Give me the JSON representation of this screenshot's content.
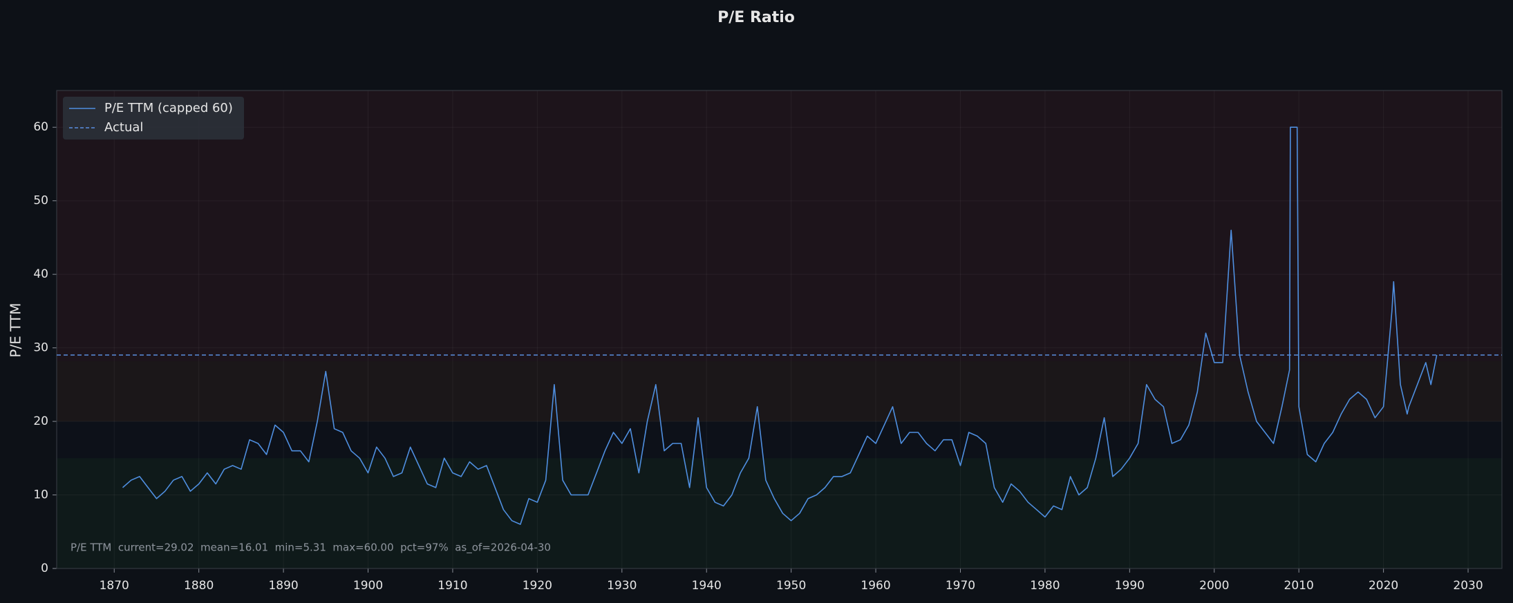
{
  "chart_data": {
    "type": "line",
    "title": "P/E Ratio",
    "ylabel": "P/E TTM",
    "annotation": "P/E TTM  current=29.02  mean=16.01  min=5.31  max=60.00  pct=97%  as_of=2026-04-30",
    "xlim": [
      1863.2,
      2034
    ],
    "ylim": [
      0,
      65
    ],
    "xticks": [
      1870,
      1880,
      1890,
      1900,
      1910,
      1920,
      1930,
      1940,
      1950,
      1960,
      1970,
      1980,
      1990,
      2000,
      2010,
      2020,
      2030
    ],
    "yticks": [
      0,
      10,
      20,
      30,
      40,
      50,
      60
    ],
    "grid": true,
    "legend": "upper left",
    "bands": [
      {
        "from": 28.2,
        "to": 65,
        "color": "#1d141b"
      },
      {
        "from": 20,
        "to": 28.2,
        "color": "#1b1719"
      },
      {
        "from": 0,
        "to": 15,
        "color": "#0f1a1a"
      }
    ],
    "reference": {
      "name": "Actual",
      "value": 29.02,
      "color": "#5b8ee0"
    },
    "x": [
      1871,
      1872,
      1873,
      1874,
      1875,
      1876,
      1877,
      1878,
      1879,
      1880,
      1881,
      1882,
      1883,
      1884,
      1885,
      1886,
      1887,
      1888,
      1889,
      1890,
      1891,
      1892,
      1893,
      1894,
      1895,
      1896,
      1897,
      1898,
      1899,
      1900,
      1901,
      1902,
      1903,
      1904,
      1905,
      1906,
      1907,
      1908,
      1909,
      1910,
      1911,
      1912,
      1913,
      1914,
      1915,
      1916,
      1917,
      1918,
      1919,
      1920,
      1921,
      1922,
      1923,
      1924,
      1925,
      1926,
      1927,
      1928,
      1929,
      1930,
      1931,
      1932,
      1933,
      1934,
      1935,
      1936,
      1937,
      1938,
      1939,
      1940,
      1941,
      1942,
      1943,
      1944,
      1945,
      1946,
      1947,
      1948,
      1949,
      1950,
      1951,
      1952,
      1953,
      1954,
      1955,
      1956,
      1957,
      1958,
      1959,
      1960,
      1961,
      1962,
      1963,
      1964,
      1965,
      1966,
      1967,
      1968,
      1969,
      1970,
      1971,
      1972,
      1973,
      1974,
      1975,
      1976,
      1977,
      1978,
      1979,
      1980,
      1981,
      1982,
      1983,
      1984,
      1985,
      1986,
      1987,
      1988,
      1989,
      1990,
      1991,
      1992,
      1993,
      1994,
      1995,
      1996,
      1997,
      1998,
      1999,
      2000,
      2001,
      2002,
      2003,
      2004,
      2005,
      2006,
      2007,
      2008,
      2008.9,
      2009,
      2009.8,
      2010,
      2011,
      2012,
      2013,
      2014,
      2015,
      2016,
      2017,
      2018,
      2019,
      2020,
      2021,
      2021.2,
      2022,
      2022.8,
      2023,
      2024,
      2025,
      2025.6,
      2026.3
    ],
    "series": [
      {
        "name": "P/E TTM (capped 60)",
        "color": "#4f8fe0",
        "values": [
          11,
          12,
          12.5,
          11,
          9.5,
          10.5,
          12,
          12.5,
          10.5,
          11.5,
          13,
          11.5,
          13.5,
          14,
          13.5,
          17.5,
          17,
          15.5,
          19.5,
          18.5,
          16,
          16,
          14.5,
          20,
          26.8,
          19,
          18.5,
          16,
          15,
          13,
          16.5,
          15,
          12.5,
          13,
          16.5,
          14,
          11.5,
          11,
          15,
          13,
          12.5,
          14.5,
          13.5,
          14,
          11,
          8,
          6.5,
          6,
          9.5,
          9,
          12,
          25,
          12,
          10,
          10,
          10,
          13,
          16,
          18.5,
          17,
          19,
          13,
          20,
          25,
          16,
          17,
          17,
          11,
          20.5,
          11,
          9,
          8.5,
          10,
          13,
          15,
          22,
          12,
          9.5,
          7.5,
          6.5,
          7.5,
          9.5,
          10,
          11,
          12.5,
          12.5,
          13,
          15.5,
          18,
          17,
          19.5,
          22,
          17,
          18.5,
          18.5,
          17,
          16,
          17.5,
          17.5,
          14,
          18.5,
          18,
          17,
          11,
          9,
          11.5,
          10.5,
          9,
          8,
          7,
          8.5,
          8,
          12.5,
          10,
          11,
          15,
          20.5,
          12.5,
          13.5,
          15,
          17,
          25,
          23,
          22,
          17,
          17.5,
          19.5,
          24,
          32,
          28,
          28,
          46,
          29,
          24,
          20,
          18.5,
          17,
          22,
          27,
          60,
          60,
          22,
          15.5,
          14.5,
          17,
          18.5,
          21,
          23,
          24,
          23,
          20.5,
          22,
          35,
          39,
          25,
          21,
          22,
          25,
          28,
          25,
          29.02
        ]
      }
    ]
  }
}
